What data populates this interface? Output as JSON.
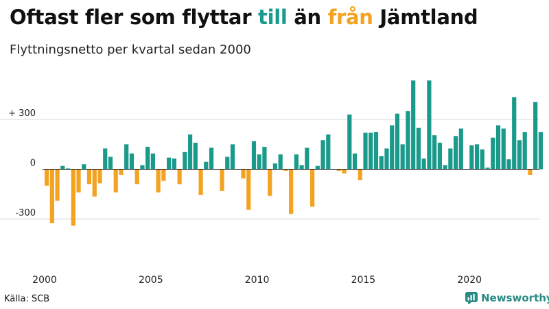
{
  "title": {
    "part1": "Oftast fler som flyttar ",
    "till": "till",
    "part2": " än ",
    "fran": "från",
    "part3": " Jämtland"
  },
  "subtitle": "Flyttningsnetto per kvartal sedan 2000",
  "source": "Källa: SCB",
  "brand": "Newsworthy",
  "colors": {
    "positive": "#1a9a8b",
    "negative": "#f4a321",
    "grid": "#d9d9d9",
    "zero_line": "#222222",
    "brand": "#2a8a84"
  },
  "chart_data": {
    "type": "bar",
    "start_year": 2000,
    "periods_per_year": 4,
    "y_ticks": [
      {
        "value": 300,
        "label": "+ 300"
      },
      {
        "value": 0,
        "label": "0"
      },
      {
        "value": -300,
        "label": "-300"
      }
    ],
    "x_ticks": [
      {
        "value": 2000,
        "label": "2000"
      },
      {
        "value": 2005,
        "label": "2005"
      },
      {
        "value": 2010,
        "label": "2010"
      },
      {
        "value": 2015,
        "label": "2015"
      },
      {
        "value": 2020,
        "label": "2020"
      }
    ],
    "ylim": [
      -450,
      560
    ],
    "grid": true,
    "values": [
      -100,
      -325,
      -190,
      20,
      5,
      -340,
      -140,
      30,
      -90,
      -165,
      -85,
      125,
      75,
      -140,
      -35,
      150,
      95,
      -90,
      25,
      135,
      95,
      -140,
      -70,
      70,
      65,
      -90,
      105,
      210,
      160,
      -155,
      45,
      130,
      0,
      -130,
      75,
      150,
      0,
      -55,
      -245,
      170,
      90,
      135,
      -160,
      35,
      90,
      -10,
      -270,
      90,
      25,
      130,
      -225,
      20,
      175,
      210,
      0,
      -10,
      -25,
      330,
      95,
      -65,
      220,
      220,
      225,
      80,
      125,
      265,
      335,
      150,
      350,
      535,
      250,
      65,
      535,
      205,
      160,
      25,
      125,
      200,
      245,
      0,
      145,
      150,
      120,
      10,
      190,
      265,
      245,
      60,
      435,
      175,
      225,
      -35,
      405,
      225
    ]
  }
}
